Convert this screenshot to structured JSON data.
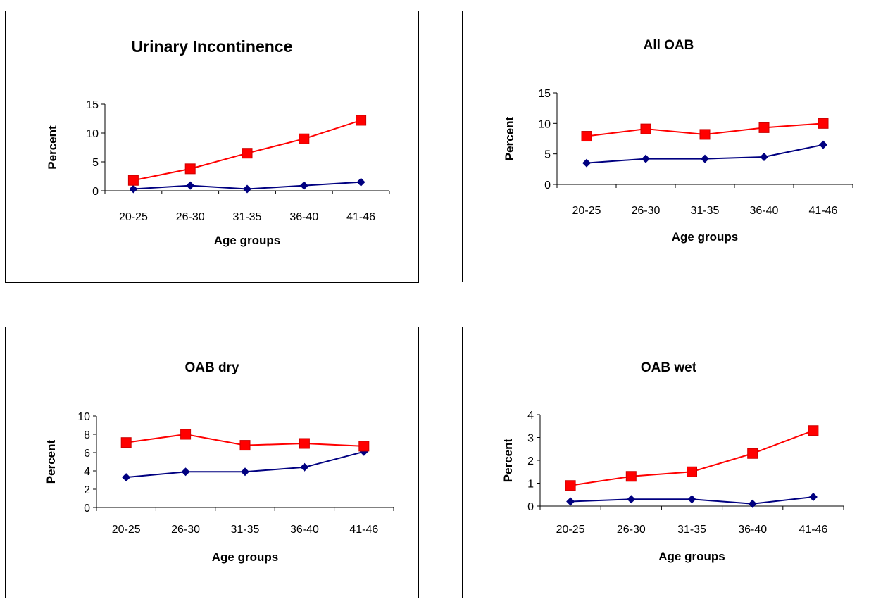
{
  "colors": {
    "series_red": "#ff0000",
    "series_blue": "#000080",
    "marker_red_stroke": "#cc0000"
  },
  "chart_data": [
    {
      "type": "line",
      "title": "Urinary Incontinence",
      "xlabel": "Age groups",
      "ylabel": "Percent",
      "categories": [
        "20-25",
        "26-30",
        "31-35",
        "36-40",
        "41-46"
      ],
      "yticks": [
        0,
        5,
        10,
        15
      ],
      "ylim": [
        0,
        15
      ],
      "grid": false,
      "series": [
        {
          "marker": "square",
          "color": "#ff0000",
          "values": [
            1.8,
            3.8,
            6.5,
            9.0,
            12.2
          ]
        },
        {
          "marker": "diamond",
          "color": "#000080",
          "values": [
            0.3,
            0.9,
            0.3,
            0.9,
            1.5
          ]
        }
      ]
    },
    {
      "type": "line",
      "title": "All OAB",
      "xlabel": "Age groups",
      "ylabel": "Percent",
      "categories": [
        "20-25",
        "26-30",
        "31-35",
        "36-40",
        "41-46"
      ],
      "yticks": [
        0,
        5,
        10,
        15
      ],
      "ylim": [
        0,
        15
      ],
      "grid": false,
      "series": [
        {
          "marker": "square",
          "color": "#ff0000",
          "values": [
            7.9,
            9.1,
            8.2,
            9.3,
            10.0
          ]
        },
        {
          "marker": "diamond",
          "color": "#000080",
          "values": [
            3.5,
            4.2,
            4.2,
            4.5,
            6.5
          ]
        }
      ]
    },
    {
      "type": "line",
      "title": "OAB dry",
      "xlabel": "Age groups",
      "ylabel": "Percent",
      "categories": [
        "20-25",
        "26-30",
        "31-35",
        "36-40",
        "41-46"
      ],
      "yticks": [
        0,
        2,
        4,
        6,
        8,
        10
      ],
      "ylim": [
        0,
        10
      ],
      "grid": false,
      "series": [
        {
          "marker": "square",
          "color": "#ff0000",
          "values": [
            7.1,
            8.0,
            6.8,
            7.0,
            6.7
          ]
        },
        {
          "marker": "diamond",
          "color": "#000080",
          "values": [
            3.3,
            3.9,
            3.9,
            4.4,
            6.1
          ]
        }
      ]
    },
    {
      "type": "line",
      "title": "OAB wet",
      "xlabel": "Age groups",
      "ylabel": "Percent",
      "categories": [
        "20-25",
        "26-30",
        "31-35",
        "36-40",
        "41-46"
      ],
      "yticks": [
        0,
        1,
        2,
        3,
        4
      ],
      "ylim": [
        0,
        4
      ],
      "grid": false,
      "series": [
        {
          "marker": "square",
          "color": "#ff0000",
          "values": [
            0.9,
            1.3,
            1.5,
            2.3,
            3.3
          ]
        },
        {
          "marker": "diamond",
          "color": "#000080",
          "values": [
            0.2,
            0.3,
            0.3,
            0.1,
            0.4
          ]
        }
      ]
    }
  ]
}
